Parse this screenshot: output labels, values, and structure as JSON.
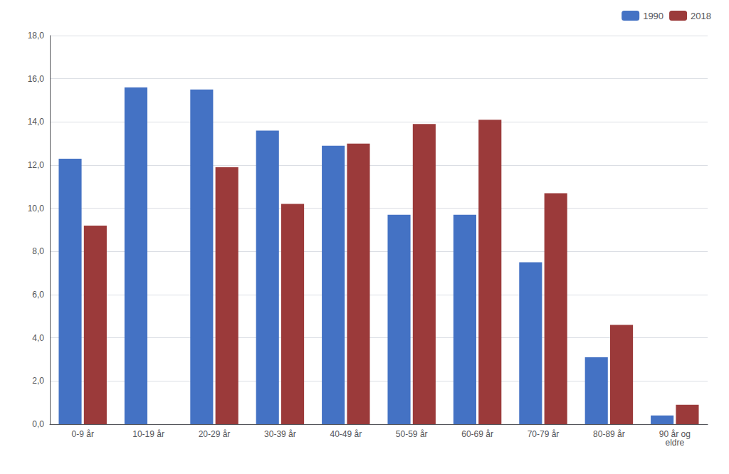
{
  "chart_data": {
    "type": "bar",
    "categories": [
      "0-9 år",
      "10-19 år",
      "20-29 år",
      "30-39 år",
      "40-49 år",
      "50-59 år",
      "60-69 år",
      "70-79 år",
      "80-89 år",
      "90 år og\neldre"
    ],
    "series": [
      {
        "name": "1990",
        "color": "#4472C4",
        "values": [
          12.3,
          15.6,
          15.5,
          13.6,
          12.9,
          9.7,
          9.7,
          7.5,
          3.1,
          0.4
        ]
      },
      {
        "name": "2018",
        "color": "#9B3A3A",
        "values": [
          9.2,
          0.0,
          11.9,
          10.2,
          13.0,
          13.9,
          14.1,
          10.7,
          4.6,
          0.9
        ]
      }
    ],
    "ylim": [
      0,
      18.0
    ],
    "yticks": [
      {
        "value": 0.0,
        "label": "0,0"
      },
      {
        "value": 2.0,
        "label": "2,0"
      },
      {
        "value": 4.0,
        "label": "4,0"
      },
      {
        "value": 6.0,
        "label": "6,0"
      },
      {
        "value": 8.0,
        "label": "8,0"
      },
      {
        "value": 10.0,
        "label": "10,0"
      },
      {
        "value": 12.0,
        "label": "12,0"
      },
      {
        "value": 14.0,
        "label": "14,0"
      },
      {
        "value": 16.0,
        "label": "16,0"
      },
      {
        "value": 18.0,
        "label": "18,0"
      }
    ],
    "grid": true,
    "legend": "upper right"
  }
}
